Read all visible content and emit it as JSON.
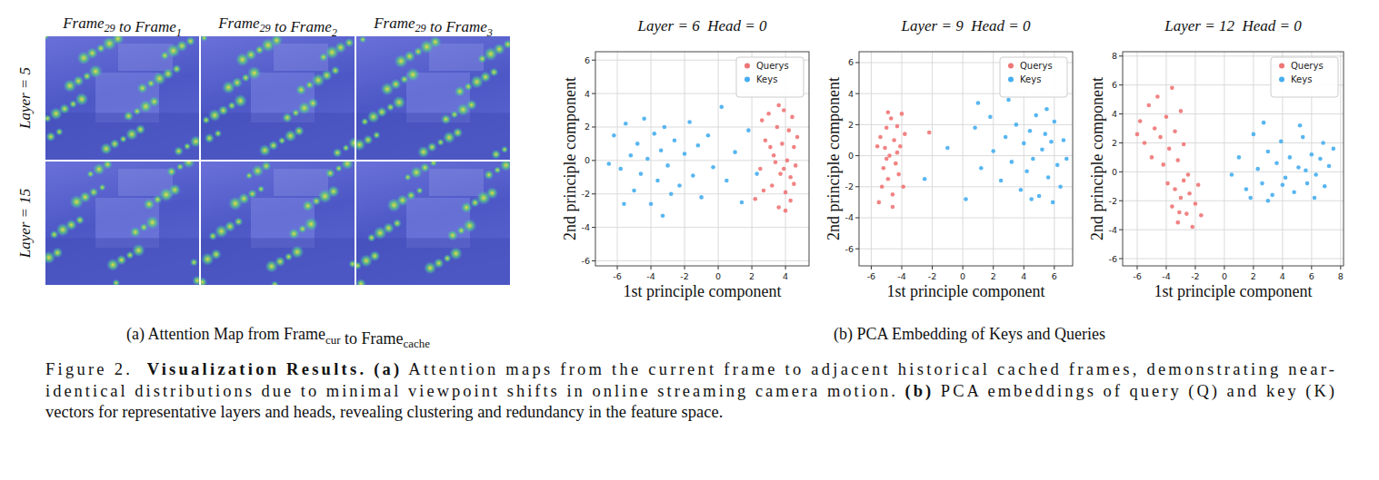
{
  "panel_a": {
    "column_titles": [
      {
        "text": [
          "Frame",
          " to Frame"
        ],
        "subs": [
          "29",
          "1"
        ]
      },
      {
        "text": [
          "Frame",
          " to Frame"
        ],
        "subs": [
          "29",
          "2"
        ]
      },
      {
        "text": [
          "Frame",
          " to Frame"
        ],
        "subs": [
          "29",
          "3"
        ]
      }
    ],
    "row_labels": [
      "Layer = 5",
      "Layer = 15"
    ],
    "caption": {
      "text": [
        "(a) Attention Map from Frame",
        " to Frame"
      ],
      "subs": [
        "cur",
        "cache"
      ]
    }
  },
  "panel_b": {
    "caption": "(b) PCA Embedding of Keys and Queries"
  },
  "chart_data": [
    {
      "type": "scatter",
      "title": "Layer = 6  Head = 0",
      "x_label": "1st principle component",
      "y_label": "2nd principle component",
      "xlim": [
        -7.3,
        5.4
      ],
      "ylim": [
        -6.3,
        6.5
      ],
      "xticks": [
        -6,
        -4,
        -2,
        0,
        2,
        4
      ],
      "yticks": [
        -6,
        -4,
        -2,
        0,
        2,
        4,
        6
      ],
      "grid": true,
      "legend": "upper right",
      "series": [
        {
          "name": "Querys",
          "color": "#f07575",
          "marker": "circle",
          "x": [
            2.2,
            2.5,
            2.8,
            3.0,
            3.2,
            3.3,
            3.5,
            3.6,
            3.7,
            3.8,
            3.9,
            4.0,
            4.1,
            4.2,
            4.3,
            4.4,
            4.5,
            4.6,
            4.7,
            3.4,
            3.1,
            4.0,
            2.7,
            3.6,
            4.3,
            2.6,
            3.9,
            4.5
          ],
          "values": [
            -2.3,
            -0.5,
            1.2,
            2.8,
            -1.5,
            0.3,
            2.0,
            -2.8,
            -0.8,
            1.0,
            3.0,
            -1.9,
            0.0,
            1.8,
            -1.0,
            2.6,
            0.8,
            -0.3,
            1.4,
            -0.1,
            0.8,
            -3.0,
            -1.8,
            3.3,
            -2.4,
            2.4,
            -0.5,
            -1.4
          ]
        },
        {
          "name": "Keys",
          "color": "#46aef0",
          "marker": "circle",
          "x": [
            -6.2,
            -5.8,
            -5.5,
            -5.2,
            -5.0,
            -4.8,
            -4.6,
            -4.4,
            -4.2,
            -4.0,
            -3.8,
            -3.6,
            -3.4,
            -3.2,
            -3.0,
            -2.8,
            -2.6,
            -2.3,
            -2.0,
            -1.7,
            -1.5,
            -1.2,
            -1.0,
            -0.6,
            -0.3,
            0.2,
            0.5,
            1.0,
            1.4,
            1.8,
            -6.5,
            -3.3,
            -5.6,
            2.3
          ],
          "values": [
            1.5,
            -0.5,
            2.2,
            0.3,
            -1.8,
            1.0,
            -0.8,
            2.5,
            0.1,
            -2.6,
            1.6,
            -1.2,
            0.6,
            2.0,
            -0.3,
            -2.0,
            1.2,
            -1.5,
            0.4,
            2.3,
            -0.9,
            0.9,
            -2.2,
            1.5,
            -0.4,
            3.2,
            -1.2,
            0.5,
            -2.5,
            1.8,
            -0.2,
            -3.3,
            -2.6,
            -0.8
          ]
        }
      ]
    },
    {
      "type": "scatter",
      "title": "Layer = 9  Head = 0",
      "x_label": "1st principle component",
      "y_label": "2nd principle component",
      "xlim": [
        -6.8,
        7.2
      ],
      "ylim": [
        -7.1,
        6.7
      ],
      "xticks": [
        -6,
        -4,
        -2,
        0,
        2,
        4,
        6
      ],
      "yticks": [
        -6,
        -4,
        -2,
        0,
        2,
        4,
        6
      ],
      "grid": true,
      "legend": "upper right",
      "series": [
        {
          "name": "Querys",
          "color": "#f07575",
          "marker": "circle",
          "x": [
            -5.5,
            -5.3,
            -5.2,
            -5.1,
            -5.0,
            -4.9,
            -4.8,
            -4.7,
            -4.6,
            -4.5,
            -4.4,
            -4.3,
            -4.2,
            -4.1,
            -4.0,
            -3.9,
            -5.4,
            -4.9,
            -4.6,
            -4.3,
            -5.0,
            -3.8,
            -2.2,
            -5.6
          ],
          "values": [
            -3.0,
            -2.0,
            -0.8,
            0.5,
            1.8,
            -1.5,
            0.0,
            2.4,
            -2.5,
            1.0,
            -0.5,
            1.9,
            -1.2,
            0.6,
            2.7,
            -2.0,
            1.2,
            2.8,
            -3.3,
            0.2,
            -0.2,
            1.4,
            1.5,
            0.6
          ]
        },
        {
          "name": "Keys",
          "color": "#46aef0",
          "marker": "circle",
          "x": [
            -2.5,
            -1.0,
            0.2,
            0.8,
            1.2,
            1.8,
            2.0,
            2.5,
            2.8,
            3.2,
            3.5,
            3.8,
            4.0,
            4.2,
            4.4,
            4.6,
            4.8,
            5.0,
            5.2,
            5.4,
            5.6,
            5.8,
            6.0,
            6.2,
            6.4,
            6.6,
            5.5,
            4.5,
            3.0,
            6.8,
            1.0,
            5.9
          ],
          "values": [
            -1.5,
            0.5,
            -2.8,
            1.8,
            -0.8,
            2.5,
            0.3,
            -1.6,
            1.2,
            -0.4,
            2.0,
            -2.2,
            0.8,
            -1.0,
            1.6,
            -0.2,
            2.6,
            -2.6,
            0.4,
            1.4,
            -1.4,
            0.9,
            2.2,
            -0.6,
            -2.0,
            1.0,
            3.0,
            -2.8,
            3.6,
            -0.2,
            3.4,
            -3.0
          ]
        }
      ]
    },
    {
      "type": "scatter",
      "title": "Layer = 12  Head = 0",
      "x_label": "1st principle component",
      "y_label": "2nd principle component",
      "xlim": [
        -7.0,
        8.2
      ],
      "ylim": [
        -6.5,
        8.3
      ],
      "xticks": [
        -6,
        -4,
        -2,
        0,
        2,
        4,
        6,
        8
      ],
      "yticks": [
        -6,
        -4,
        -2,
        0,
        2,
        4,
        6,
        8
      ],
      "grid": true,
      "legend": "upper right",
      "series": [
        {
          "name": "Querys",
          "color": "#f07575",
          "marker": "circle",
          "x": [
            -5.8,
            -5.5,
            -5.2,
            -5.0,
            -4.8,
            -4.6,
            -4.4,
            -4.2,
            -4.0,
            -3.8,
            -3.6,
            -3.4,
            -3.2,
            -3.0,
            -2.8,
            -6.0,
            -3.9,
            -3.6,
            -3.4,
            -3.2,
            -3.0,
            -2.8,
            -2.6,
            -2.4,
            -2.2,
            -2.0,
            -1.8,
            -3.1,
            -2.5,
            -1.6
          ],
          "values": [
            3.5,
            2.0,
            4.6,
            1.0,
            3.0,
            5.2,
            2.4,
            0.5,
            3.8,
            1.6,
            5.8,
            2.8,
            0.8,
            4.2,
            1.9,
            2.6,
            -0.8,
            -2.4,
            -1.2,
            -3.5,
            -1.8,
            -0.6,
            -2.9,
            -1.5,
            -3.8,
            -2.2,
            -0.9,
            -2.8,
            -0.2,
            -3.0
          ]
        },
        {
          "name": "Keys",
          "color": "#46aef0",
          "marker": "circle",
          "x": [
            0.5,
            1.0,
            1.5,
            2.0,
            2.3,
            2.6,
            3.0,
            3.3,
            3.6,
            3.9,
            4.2,
            4.5,
            4.8,
            5.1,
            5.4,
            5.7,
            6.0,
            6.3,
            6.6,
            6.9,
            7.2,
            7.5,
            3.0,
            5.2,
            4.0,
            5.6,
            6.8,
            1.8,
            2.7,
            6.2
          ],
          "values": [
            -0.2,
            1.0,
            -1.2,
            2.6,
            0.2,
            -0.8,
            1.4,
            -1.6,
            0.6,
            2.1,
            -0.4,
            1.0,
            -1.4,
            0.3,
            2.4,
            -0.8,
            1.2,
            -0.2,
            0.9,
            -1.0,
            0.4,
            1.6,
            -2.0,
            3.2,
            -0.9,
            0.1,
            2.0,
            -1.8,
            3.4,
            -1.8
          ]
        }
      ]
    }
  ],
  "caption": {
    "lines": [
      [
        {
          "text": "Figure 2.  ",
          "bold": false
        },
        {
          "text": "Visualization Results.",
          "bold": true
        },
        {
          "text": " (a)",
          "bold": true
        },
        {
          "text": " Attention maps from the current frame to adjacent historical cached frames, demonstrating near-",
          "bold": false
        }
      ],
      [
        {
          "text": "identical distributions due to minimal viewpoint shifts in online streaming camera motion. ",
          "bold": false
        },
        {
          "text": "(b)",
          "bold": true
        },
        {
          "text": " PCA embeddings of query (Q) and key (K)",
          "bold": false
        }
      ],
      [
        {
          "text": "vectors for representative layers and heads, revealing clustering and redundancy in the feature space.",
          "bold": false
        }
      ]
    ]
  }
}
